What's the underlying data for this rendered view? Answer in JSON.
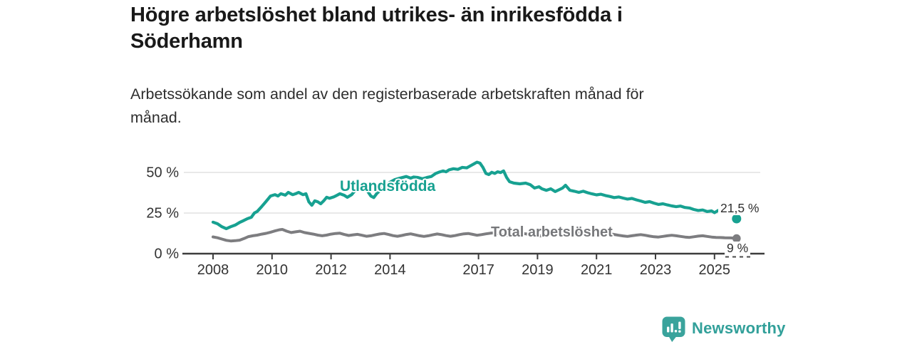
{
  "chart_data": {
    "type": "line",
    "title": "Högre arbetslöshet bland utrikes- än inrikesfödda i\nSöderhamn",
    "subtitle": "Arbetssökande som andel av den registerbaserade arbetskraften månad för\nmånad.",
    "xlabel": "",
    "ylabel": "",
    "unit": "%",
    "ylim": [
      0,
      60
    ],
    "xlim": [
      2006.8,
      2026.7
    ],
    "grid": "horizontal",
    "legend_position": "inline-labels",
    "yticks": [
      {
        "value": 0,
        "label": "0 %"
      },
      {
        "value": 25,
        "label": "25 %"
      },
      {
        "value": 50,
        "label": "50 %"
      }
    ],
    "xticks": [
      {
        "value": 2008,
        "label": "2008"
      },
      {
        "value": 2010,
        "label": "2010"
      },
      {
        "value": 2012,
        "label": "2012"
      },
      {
        "value": 2014,
        "label": "2014"
      },
      {
        "value": 2017,
        "label": "2017"
      },
      {
        "value": 2019,
        "label": "2019"
      },
      {
        "value": 2021,
        "label": "2021"
      },
      {
        "value": 2023,
        "label": "2023"
      },
      {
        "value": 2025,
        "label": "2025"
      }
    ],
    "series": [
      {
        "name": "Utlandsfödda",
        "color": "#17a191",
        "end_dot": {
          "x": 2025.75,
          "y": 21.5,
          "label": "21,5 %"
        },
        "points": [
          [
            2008.0,
            19.4
          ],
          [
            2008.15,
            18.4
          ],
          [
            2008.3,
            16.6
          ],
          [
            2008.45,
            15.4
          ],
          [
            2008.6,
            16.6
          ],
          [
            2008.75,
            17.6
          ],
          [
            2008.9,
            19.2
          ],
          [
            2009.05,
            20.5
          ],
          [
            2009.15,
            21.4
          ],
          [
            2009.3,
            22.4
          ],
          [
            2009.4,
            25.0
          ],
          [
            2009.5,
            26.0
          ],
          [
            2009.65,
            29.0
          ],
          [
            2009.75,
            31.1
          ],
          [
            2009.85,
            33.3
          ],
          [
            2009.95,
            35.5
          ],
          [
            2010.1,
            36.3
          ],
          [
            2010.2,
            35.5
          ],
          [
            2010.3,
            36.9
          ],
          [
            2010.45,
            36.0
          ],
          [
            2010.55,
            37.7
          ],
          [
            2010.7,
            36.3
          ],
          [
            2010.8,
            36.9
          ],
          [
            2010.9,
            37.7
          ],
          [
            2011.05,
            36.3
          ],
          [
            2011.15,
            36.9
          ],
          [
            2011.25,
            31.9
          ],
          [
            2011.35,
            29.8
          ],
          [
            2011.45,
            32.5
          ],
          [
            2011.55,
            31.9
          ],
          [
            2011.65,
            30.7
          ],
          [
            2011.75,
            32.5
          ],
          [
            2011.85,
            34.7
          ],
          [
            2011.95,
            34.1
          ],
          [
            2012.1,
            35.0
          ],
          [
            2012.2,
            35.9
          ],
          [
            2012.3,
            36.9
          ],
          [
            2012.45,
            35.9
          ],
          [
            2012.55,
            34.7
          ],
          [
            2012.7,
            36.3
          ],
          [
            2012.8,
            38.5
          ],
          [
            2012.9,
            41.5
          ],
          [
            2013.05,
            43.0
          ],
          [
            2013.2,
            39.5
          ],
          [
            2013.35,
            35.5
          ],
          [
            2013.45,
            34.5
          ],
          [
            2013.55,
            37.0
          ],
          [
            2013.7,
            39.5
          ],
          [
            2013.85,
            42.0
          ],
          [
            2014.0,
            44.0
          ],
          [
            2014.15,
            45.5
          ],
          [
            2014.3,
            46.3
          ],
          [
            2014.45,
            47.0
          ],
          [
            2014.55,
            47.5
          ],
          [
            2014.7,
            46.5
          ],
          [
            2014.8,
            47.2
          ],
          [
            2014.95,
            46.9
          ],
          [
            2015.1,
            46.1
          ],
          [
            2015.25,
            46.9
          ],
          [
            2015.4,
            47.5
          ],
          [
            2015.55,
            49.4
          ],
          [
            2015.65,
            50.1
          ],
          [
            2015.8,
            50.9
          ],
          [
            2015.9,
            50.4
          ],
          [
            2016.0,
            51.6
          ],
          [
            2016.15,
            52.3
          ],
          [
            2016.3,
            51.9
          ],
          [
            2016.45,
            53.1
          ],
          [
            2016.6,
            52.8
          ],
          [
            2016.7,
            53.8
          ],
          [
            2016.85,
            55.3
          ],
          [
            2016.95,
            56.3
          ],
          [
            2017.05,
            55.7
          ],
          [
            2017.15,
            53.1
          ],
          [
            2017.25,
            49.4
          ],
          [
            2017.35,
            48.7
          ],
          [
            2017.45,
            50.1
          ],
          [
            2017.55,
            49.4
          ],
          [
            2017.65,
            50.4
          ],
          [
            2017.75,
            49.9
          ],
          [
            2017.85,
            50.9
          ],
          [
            2017.95,
            47.0
          ],
          [
            2018.05,
            44.3
          ],
          [
            2018.2,
            43.4
          ],
          [
            2018.4,
            43.0
          ],
          [
            2018.6,
            43.4
          ],
          [
            2018.75,
            42.5
          ],
          [
            2018.9,
            40.4
          ],
          [
            2019.05,
            41.2
          ],
          [
            2019.15,
            39.9
          ],
          [
            2019.3,
            39.0
          ],
          [
            2019.45,
            39.9
          ],
          [
            2019.6,
            38.2
          ],
          [
            2019.75,
            39.5
          ],
          [
            2019.85,
            40.4
          ],
          [
            2019.95,
            42.1
          ],
          [
            2020.1,
            39.0
          ],
          [
            2020.25,
            38.4
          ],
          [
            2020.4,
            37.7
          ],
          [
            2020.55,
            38.4
          ],
          [
            2020.7,
            37.5
          ],
          [
            2020.85,
            36.8
          ],
          [
            2021.0,
            36.2
          ],
          [
            2021.15,
            36.6
          ],
          [
            2021.3,
            35.8
          ],
          [
            2021.45,
            35.2
          ],
          [
            2021.6,
            34.5
          ],
          [
            2021.75,
            34.9
          ],
          [
            2021.9,
            34.2
          ],
          [
            2022.05,
            33.6
          ],
          [
            2022.2,
            34.0
          ],
          [
            2022.35,
            33.1
          ],
          [
            2022.5,
            32.4
          ],
          [
            2022.65,
            31.6
          ],
          [
            2022.8,
            32.0
          ],
          [
            2022.95,
            31.1
          ],
          [
            2023.1,
            30.3
          ],
          [
            2023.25,
            30.7
          ],
          [
            2023.4,
            30.0
          ],
          [
            2023.55,
            29.4
          ],
          [
            2023.7,
            28.9
          ],
          [
            2023.85,
            29.3
          ],
          [
            2024.0,
            28.4
          ],
          [
            2024.15,
            28.1
          ],
          [
            2024.3,
            27.2
          ],
          [
            2024.45,
            26.6
          ],
          [
            2024.6,
            26.9
          ],
          [
            2024.75,
            25.9
          ],
          [
            2024.9,
            26.3
          ],
          [
            2025.0,
            25.2
          ],
          [
            2025.1,
            26.3
          ],
          [
            2025.2,
            27.3
          ],
          [
            2025.3,
            28.3
          ]
        ]
      },
      {
        "name": "Total arbetslöshet",
        "color": "#7d7d80",
        "end_dot": {
          "x": 2025.75,
          "y": 9.4,
          "label": "9 %"
        },
        "points": [
          [
            2008.0,
            10.3
          ],
          [
            2008.15,
            9.8
          ],
          [
            2008.3,
            9.0
          ],
          [
            2008.45,
            8.2
          ],
          [
            2008.6,
            7.8
          ],
          [
            2008.75,
            8.0
          ],
          [
            2008.9,
            8.3
          ],
          [
            2009.05,
            9.3
          ],
          [
            2009.2,
            10.5
          ],
          [
            2009.35,
            11.0
          ],
          [
            2009.5,
            11.4
          ],
          [
            2009.65,
            12.0
          ],
          [
            2009.8,
            12.5
          ],
          [
            2009.95,
            13.2
          ],
          [
            2010.1,
            14.0
          ],
          [
            2010.25,
            14.7
          ],
          [
            2010.35,
            14.9
          ],
          [
            2010.5,
            13.8
          ],
          [
            2010.65,
            13.0
          ],
          [
            2010.8,
            13.4
          ],
          [
            2010.95,
            13.8
          ],
          [
            2011.1,
            13.0
          ],
          [
            2011.25,
            12.5
          ],
          [
            2011.4,
            12.0
          ],
          [
            2011.55,
            11.4
          ],
          [
            2011.7,
            11.0
          ],
          [
            2011.85,
            11.4
          ],
          [
            2012.0,
            12.0
          ],
          [
            2012.15,
            12.4
          ],
          [
            2012.3,
            12.6
          ],
          [
            2012.45,
            11.8
          ],
          [
            2012.6,
            11.2
          ],
          [
            2012.75,
            11.6
          ],
          [
            2012.9,
            11.9
          ],
          [
            2013.05,
            11.3
          ],
          [
            2013.2,
            10.7
          ],
          [
            2013.35,
            11.0
          ],
          [
            2013.5,
            11.6
          ],
          [
            2013.65,
            12.1
          ],
          [
            2013.8,
            12.4
          ],
          [
            2013.95,
            11.8
          ],
          [
            2014.1,
            11.1
          ],
          [
            2014.25,
            10.7
          ],
          [
            2014.4,
            11.2
          ],
          [
            2014.55,
            11.8
          ],
          [
            2014.7,
            12.2
          ],
          [
            2014.85,
            11.6
          ],
          [
            2015.0,
            11.0
          ],
          [
            2015.15,
            10.6
          ],
          [
            2015.3,
            11.0
          ],
          [
            2015.45,
            11.6
          ],
          [
            2015.6,
            12.1
          ],
          [
            2015.75,
            11.7
          ],
          [
            2015.9,
            11.1
          ],
          [
            2016.05,
            10.7
          ],
          [
            2016.2,
            11.1
          ],
          [
            2016.35,
            11.7
          ],
          [
            2016.5,
            12.2
          ],
          [
            2016.65,
            12.4
          ],
          [
            2016.8,
            11.9
          ],
          [
            2016.95,
            11.3
          ],
          [
            2017.1,
            11.7
          ],
          [
            2017.25,
            12.2
          ],
          [
            2017.4,
            12.6
          ],
          [
            2017.55,
            12.8
          ],
          [
            2017.7,
            12.3
          ],
          [
            2017.85,
            11.7
          ],
          [
            2018.0,
            11.2
          ],
          [
            2018.15,
            11.6
          ],
          [
            2018.3,
            12.1
          ],
          [
            2018.45,
            12.5
          ],
          [
            2018.6,
            12.2
          ],
          [
            2018.75,
            11.7
          ],
          [
            2018.9,
            11.1
          ],
          [
            2019.05,
            10.8
          ],
          [
            2019.2,
            11.2
          ],
          [
            2019.35,
            11.7
          ],
          [
            2019.5,
            12.1
          ],
          [
            2019.65,
            11.8
          ],
          [
            2019.8,
            11.2
          ],
          [
            2019.95,
            10.9
          ],
          [
            2020.1,
            11.3
          ],
          [
            2020.25,
            12.2
          ],
          [
            2020.4,
            13.0
          ],
          [
            2020.55,
            13.4
          ],
          [
            2020.7,
            13.0
          ],
          [
            2020.85,
            12.5
          ],
          [
            2021.0,
            12.1
          ],
          [
            2021.15,
            12.4
          ],
          [
            2021.3,
            12.7
          ],
          [
            2021.45,
            12.3
          ],
          [
            2021.6,
            11.8
          ],
          [
            2021.75,
            11.3
          ],
          [
            2021.9,
            10.9
          ],
          [
            2022.05,
            10.6
          ],
          [
            2022.2,
            11.0
          ],
          [
            2022.35,
            11.4
          ],
          [
            2022.5,
            11.7
          ],
          [
            2022.65,
            11.3
          ],
          [
            2022.8,
            10.8
          ],
          [
            2022.95,
            10.4
          ],
          [
            2023.1,
            10.2
          ],
          [
            2023.25,
            10.6
          ],
          [
            2023.4,
            11.0
          ],
          [
            2023.55,
            11.3
          ],
          [
            2023.7,
            11.0
          ],
          [
            2023.85,
            10.6
          ],
          [
            2024.0,
            10.2
          ],
          [
            2024.15,
            10.0
          ],
          [
            2024.3,
            10.4
          ],
          [
            2024.45,
            10.8
          ],
          [
            2024.6,
            11.0
          ],
          [
            2024.75,
            10.6
          ],
          [
            2024.9,
            10.2
          ],
          [
            2025.05,
            10.0
          ],
          [
            2025.2,
            9.9
          ],
          [
            2025.35,
            9.8
          ],
          [
            2025.55,
            9.7
          ],
          [
            2025.75,
            9.4
          ]
        ]
      }
    ],
    "colors": {
      "foreign_born_line": "#17a191",
      "total_line": "#7d7d80",
      "axis": "#3d3d3d",
      "gridline": "#d9d9d9",
      "tick_text": "#333333"
    }
  },
  "footer": {
    "brand": "Newsworthy",
    "brand_color": "#32a09a",
    "logo_icon": "bar-chart-speech-bubble-icon"
  }
}
